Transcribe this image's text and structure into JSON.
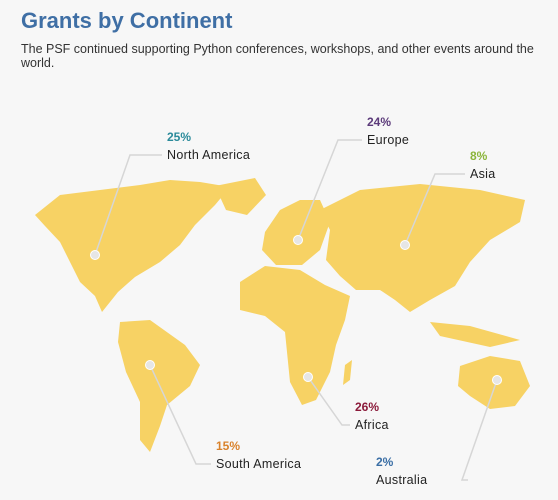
{
  "header": {
    "title": "Grants by Continent",
    "subtitle": "The PSF continued supporting Python conferences, workshops, and other events around the world."
  },
  "regions": [
    {
      "name": "North America",
      "share": "25%",
      "color": "#2a8a9a"
    },
    {
      "name": "Europe",
      "share": "24%",
      "color": "#5b3a7a"
    },
    {
      "name": "Asia",
      "share": "8%",
      "color": "#8bb53a"
    },
    {
      "name": "Africa",
      "share": "26%",
      "color": "#8b1a3a"
    },
    {
      "name": "South America",
      "share": "15%",
      "color": "#d9822b"
    },
    {
      "name": "Australia",
      "share": "2%",
      "color": "#3a6ea5"
    }
  ]
}
